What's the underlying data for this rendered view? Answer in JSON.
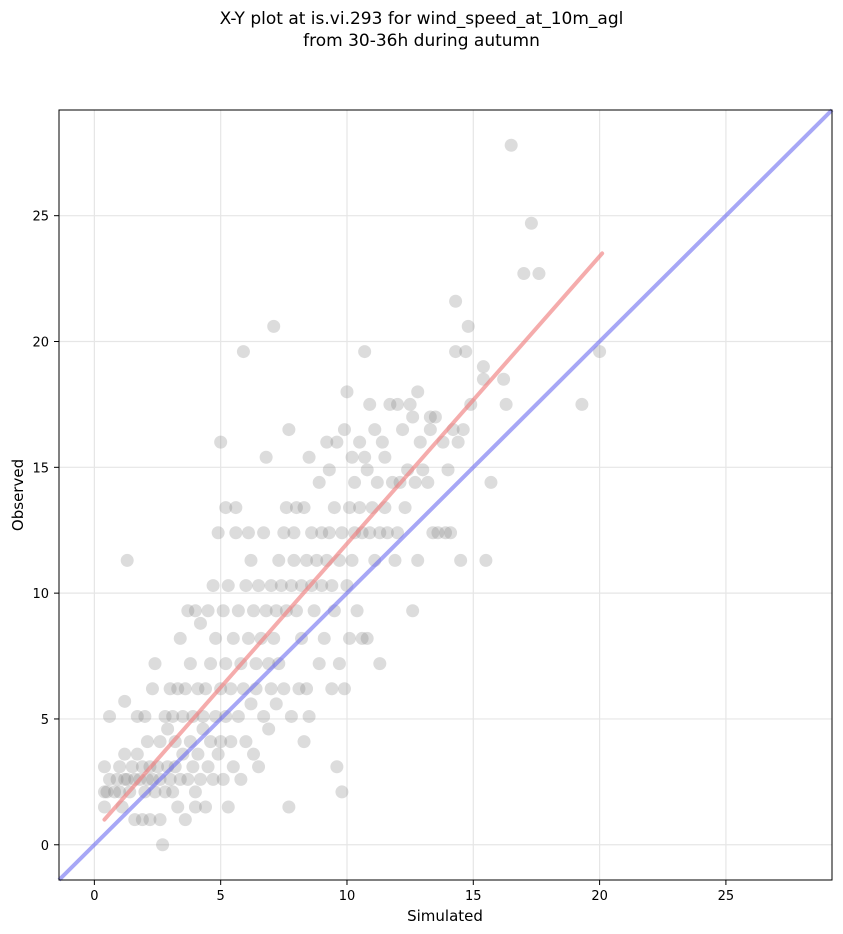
{
  "chart_data": {
    "type": "scatter",
    "title": "X-Y plot at is.vi.293 for wind_speed_at_10m_agl",
    "subtitle": "from 30-36h during autumn",
    "xlabel": "Simulated",
    "ylabel": "Observed",
    "xlim": [
      -1.4,
      29.2
    ],
    "ylim": [
      -1.4,
      29.2
    ],
    "xticks": [
      0,
      5,
      10,
      15,
      20,
      25
    ],
    "yticks": [
      0,
      5,
      10,
      15,
      20,
      25
    ],
    "grid": true,
    "point_color": "#808080",
    "fit_line": {
      "color": "#f08080",
      "x": [
        0.4,
        20.1
      ],
      "y": [
        1.0,
        23.5
      ]
    },
    "identity_line": {
      "color": "#6c6cf0",
      "x": [
        -1.4,
        29.2
      ],
      "y": [
        -1.4,
        29.2
      ]
    },
    "points": [
      [
        0.4,
        1.5
      ],
      [
        0.4,
        2.1
      ],
      [
        0.4,
        3.1
      ],
      [
        0.5,
        2.1
      ],
      [
        0.6,
        5.1
      ],
      [
        0.6,
        2.6
      ],
      [
        0.8,
        2.1
      ],
      [
        0.9,
        2.6
      ],
      [
        1.0,
        3.1
      ],
      [
        1.0,
        2.1
      ],
      [
        1.1,
        1.5
      ],
      [
        1.2,
        2.6
      ],
      [
        1.2,
        3.6
      ],
      [
        1.3,
        2.6
      ],
      [
        1.3,
        11.3
      ],
      [
        1.2,
        5.7
      ],
      [
        1.4,
        2.1
      ],
      [
        1.5,
        3.1
      ],
      [
        1.6,
        2.6
      ],
      [
        1.6,
        1.0
      ],
      [
        1.7,
        3.6
      ],
      [
        1.7,
        5.1
      ],
      [
        1.8,
        2.6
      ],
      [
        1.9,
        1.0
      ],
      [
        1.9,
        3.1
      ],
      [
        2.0,
        2.1
      ],
      [
        2.0,
        5.1
      ],
      [
        2.1,
        2.6
      ],
      [
        2.1,
        4.1
      ],
      [
        2.2,
        3.1
      ],
      [
        2.2,
        1.0
      ],
      [
        2.3,
        6.2
      ],
      [
        2.3,
        2.6
      ],
      [
        2.4,
        7.2
      ],
      [
        2.4,
        2.1
      ],
      [
        2.5,
        3.1
      ],
      [
        2.6,
        2.6
      ],
      [
        2.6,
        4.1
      ],
      [
        2.6,
        1.0
      ],
      [
        2.7,
        0.0
      ],
      [
        2.8,
        5.1
      ],
      [
        2.8,
        2.1
      ],
      [
        2.9,
        3.1
      ],
      [
        2.9,
        4.6
      ],
      [
        3.0,
        6.2
      ],
      [
        3.0,
        2.6
      ],
      [
        3.1,
        5.1
      ],
      [
        3.1,
        2.1
      ],
      [
        3.2,
        3.1
      ],
      [
        3.2,
        4.1
      ],
      [
        3.3,
        6.2
      ],
      [
        3.3,
        1.5
      ],
      [
        3.4,
        8.2
      ],
      [
        3.4,
        2.6
      ],
      [
        3.5,
        5.1
      ],
      [
        3.5,
        3.6
      ],
      [
        3.6,
        6.2
      ],
      [
        3.6,
        1.0
      ],
      [
        3.7,
        9.3
      ],
      [
        3.7,
        2.6
      ],
      [
        3.8,
        7.2
      ],
      [
        3.8,
        4.1
      ],
      [
        3.9,
        3.1
      ],
      [
        3.9,
        5.1
      ],
      [
        4.0,
        9.3
      ],
      [
        4.0,
        2.1
      ],
      [
        4.0,
        1.5
      ],
      [
        4.1,
        6.2
      ],
      [
        4.1,
        3.6
      ],
      [
        4.2,
        8.8
      ],
      [
        4.2,
        2.6
      ],
      [
        4.3,
        4.6
      ],
      [
        4.3,
        5.1
      ],
      [
        4.4,
        6.2
      ],
      [
        4.4,
        1.5
      ],
      [
        4.5,
        9.3
      ],
      [
        4.5,
        3.1
      ],
      [
        4.6,
        7.2
      ],
      [
        4.6,
        4.1
      ],
      [
        4.7,
        10.3
      ],
      [
        4.7,
        2.6
      ],
      [
        4.8,
        5.1
      ],
      [
        4.8,
        8.2
      ],
      [
        4.9,
        12.4
      ],
      [
        4.9,
        3.6
      ],
      [
        5.0,
        16.0
      ],
      [
        5.0,
        6.2
      ],
      [
        5.0,
        4.1
      ],
      [
        5.1,
        9.3
      ],
      [
        5.1,
        2.6
      ],
      [
        5.2,
        7.2
      ],
      [
        5.2,
        13.4
      ],
      [
        5.2,
        5.1
      ],
      [
        5.3,
        1.5
      ],
      [
        5.3,
        10.3
      ],
      [
        5.4,
        6.2
      ],
      [
        5.4,
        4.1
      ],
      [
        5.5,
        8.2
      ],
      [
        5.5,
        3.1
      ],
      [
        5.6,
        12.4
      ],
      [
        5.6,
        13.4
      ],
      [
        5.7,
        9.3
      ],
      [
        5.7,
        5.1
      ],
      [
        5.8,
        7.2
      ],
      [
        5.8,
        2.6
      ],
      [
        5.9,
        6.2
      ],
      [
        5.9,
        19.6
      ],
      [
        6.0,
        10.3
      ],
      [
        6.0,
        4.1
      ],
      [
        6.1,
        8.2
      ],
      [
        6.1,
        12.4
      ],
      [
        6.2,
        11.3
      ],
      [
        6.2,
        5.6
      ],
      [
        6.3,
        9.3
      ],
      [
        6.3,
        3.6
      ],
      [
        6.4,
        7.2
      ],
      [
        6.4,
        6.2
      ],
      [
        6.5,
        10.3
      ],
      [
        6.5,
        3.1
      ],
      [
        6.6,
        8.2
      ],
      [
        6.7,
        5.1
      ],
      [
        6.7,
        12.4
      ],
      [
        6.8,
        15.4
      ],
      [
        6.8,
        9.3
      ],
      [
        6.9,
        7.2
      ],
      [
        6.9,
        4.6
      ],
      [
        7.0,
        10.3
      ],
      [
        7.0,
        6.2
      ],
      [
        7.1,
        20.6
      ],
      [
        7.1,
        8.2
      ],
      [
        7.2,
        9.3
      ],
      [
        7.2,
        5.6
      ],
      [
        7.3,
        11.3
      ],
      [
        7.3,
        7.2
      ],
      [
        7.4,
        10.3
      ],
      [
        7.5,
        12.4
      ],
      [
        7.5,
        6.2
      ],
      [
        7.6,
        13.4
      ],
      [
        7.6,
        9.3
      ],
      [
        7.7,
        16.5
      ],
      [
        7.7,
        1.5
      ],
      [
        7.8,
        10.3
      ],
      [
        7.8,
        5.1
      ],
      [
        7.9,
        12.4
      ],
      [
        7.9,
        11.3
      ],
      [
        8.0,
        9.3
      ],
      [
        8.0,
        13.4
      ],
      [
        8.1,
        6.2
      ],
      [
        8.2,
        10.3
      ],
      [
        8.2,
        8.2
      ],
      [
        8.3,
        13.4
      ],
      [
        8.3,
        4.1
      ],
      [
        8.4,
        11.3
      ],
      [
        8.4,
        6.2
      ],
      [
        8.5,
        15.4
      ],
      [
        8.5,
        5.1
      ],
      [
        8.6,
        10.3
      ],
      [
        8.6,
        12.4
      ],
      [
        8.7,
        9.3
      ],
      [
        8.8,
        11.3
      ],
      [
        8.9,
        14.4
      ],
      [
        8.9,
        7.2
      ],
      [
        9.0,
        12.4
      ],
      [
        9.0,
        10.3
      ],
      [
        9.1,
        8.2
      ],
      [
        9.2,
        16.0
      ],
      [
        9.2,
        11.3
      ],
      [
        9.3,
        12.4
      ],
      [
        9.3,
        14.9
      ],
      [
        9.4,
        6.2
      ],
      [
        9.4,
        10.3
      ],
      [
        9.5,
        13.4
      ],
      [
        9.5,
        9.3
      ],
      [
        9.6,
        16.0
      ],
      [
        9.6,
        3.1
      ],
      [
        9.7,
        11.3
      ],
      [
        9.7,
        7.2
      ],
      [
        9.8,
        12.4
      ],
      [
        9.8,
        2.1
      ],
      [
        9.9,
        16.5
      ],
      [
        9.9,
        6.2
      ],
      [
        10.0,
        18.0
      ],
      [
        10.0,
        10.3
      ],
      [
        10.1,
        13.4
      ],
      [
        10.1,
        8.2
      ],
      [
        10.2,
        15.4
      ],
      [
        10.2,
        11.3
      ],
      [
        10.3,
        12.4
      ],
      [
        10.3,
        14.4
      ],
      [
        10.4,
        9.3
      ],
      [
        10.5,
        16.0
      ],
      [
        10.5,
        13.4
      ],
      [
        10.6,
        8.2
      ],
      [
        10.6,
        12.4
      ],
      [
        10.7,
        19.6
      ],
      [
        10.7,
        15.4
      ],
      [
        10.8,
        14.9
      ],
      [
        10.8,
        8.2
      ],
      [
        10.9,
        17.5
      ],
      [
        10.9,
        12.4
      ],
      [
        11.0,
        13.4
      ],
      [
        11.1,
        16.5
      ],
      [
        11.1,
        11.3
      ],
      [
        11.2,
        14.4
      ],
      [
        11.3,
        7.2
      ],
      [
        11.3,
        12.4
      ],
      [
        11.4,
        16.0
      ],
      [
        11.5,
        15.4
      ],
      [
        11.5,
        13.4
      ],
      [
        11.6,
        12.4
      ],
      [
        11.7,
        17.5
      ],
      [
        11.8,
        14.4
      ],
      [
        11.9,
        11.3
      ],
      [
        12.0,
        17.5
      ],
      [
        12.0,
        12.4
      ],
      [
        12.1,
        14.4
      ],
      [
        12.2,
        16.5
      ],
      [
        12.3,
        13.4
      ],
      [
        12.4,
        14.9
      ],
      [
        12.5,
        17.5
      ],
      [
        12.6,
        9.3
      ],
      [
        12.6,
        17.0
      ],
      [
        12.7,
        14.4
      ],
      [
        12.8,
        18.0
      ],
      [
        12.8,
        11.3
      ],
      [
        12.9,
        16.0
      ],
      [
        13.0,
        14.9
      ],
      [
        13.2,
        14.4
      ],
      [
        13.3,
        17.0
      ],
      [
        13.3,
        16.5
      ],
      [
        13.4,
        12.4
      ],
      [
        13.5,
        17.0
      ],
      [
        13.6,
        12.4
      ],
      [
        13.8,
        16.0
      ],
      [
        13.9,
        12.4
      ],
      [
        14.0,
        14.9
      ],
      [
        14.1,
        12.4
      ],
      [
        14.2,
        16.5
      ],
      [
        14.3,
        21.6
      ],
      [
        14.3,
        19.6
      ],
      [
        14.4,
        16.0
      ],
      [
        14.5,
        11.3
      ],
      [
        14.6,
        16.5
      ],
      [
        14.7,
        19.6
      ],
      [
        14.8,
        20.6
      ],
      [
        14.9,
        17.5
      ],
      [
        15.4,
        18.5
      ],
      [
        15.4,
        19.0
      ],
      [
        15.5,
        11.3
      ],
      [
        15.7,
        14.4
      ],
      [
        16.2,
        18.5
      ],
      [
        16.3,
        17.5
      ],
      [
        16.5,
        27.8
      ],
      [
        17.0,
        22.7
      ],
      [
        17.3,
        24.7
      ],
      [
        17.6,
        22.7
      ],
      [
        19.3,
        17.5
      ],
      [
        20.0,
        19.6
      ]
    ]
  }
}
